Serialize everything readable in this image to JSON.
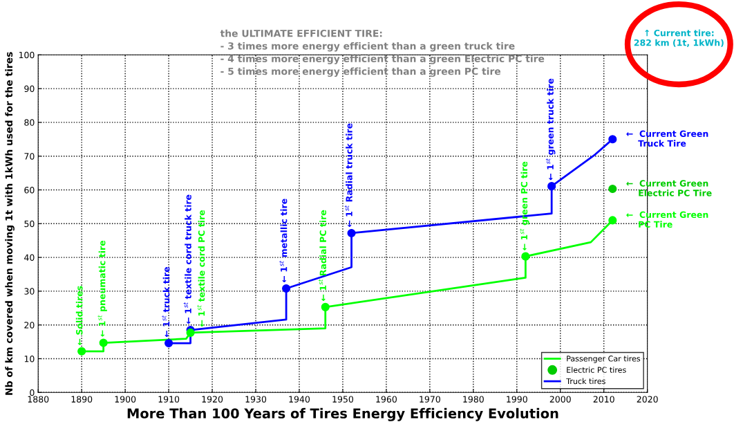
{
  "chart_data": {
    "type": "line",
    "xlabel": "More Than 100 Years of Tires Energy Efficiency Evolution",
    "ylabel": "Nb of km covered when moving 1t with 1kWh used for the tires",
    "xlim": [
      1880,
      2020
    ],
    "xticks": [
      1880,
      1890,
      1900,
      1910,
      1920,
      1930,
      1940,
      1950,
      1960,
      1970,
      1980,
      1990,
      2000,
      2010,
      2020
    ],
    "ylim": [
      0,
      100
    ],
    "yticks": [
      0,
      10,
      20,
      30,
      40,
      50,
      60,
      70,
      80,
      90,
      100
    ],
    "grid": true,
    "legend": "bottom right",
    "series": [
      {
        "name": "Passenger Car tires",
        "color": "#00ff00",
        "x": [
          1890,
          1895,
          1895,
          1914,
          1915,
          1946,
          1946,
          1992,
          1992,
          2007,
          2012
        ],
        "values": [
          12.2,
          12.2,
          14.7,
          15.9,
          17.7,
          19,
          25.3,
          34,
          40.3,
          44.5,
          51
        ]
      },
      {
        "name": "Electric PC tires",
        "type": "scatter",
        "color": "#00cc00",
        "x": [
          2012
        ],
        "values": [
          60.3
        ]
      },
      {
        "name": "Truck tires",
        "color": "#0000ff",
        "x": [
          1910,
          1915,
          1915,
          1937,
          1937,
          1952,
          1952,
          1998,
          1998,
          2008,
          2012
        ],
        "values": [
          14.6,
          14.6,
          18.5,
          21.6,
          30.8,
          37.1,
          47.2,
          53,
          61.1,
          70.5,
          75
        ]
      },
      {
        "type": "scatter",
        "color": "#00ff00",
        "x": [
          1890,
          1895,
          1915,
          1946,
          1992,
          2012
        ],
        "values": [
          12.2,
          14.7,
          17.7,
          25.3,
          40.3,
          51
        ]
      },
      {
        "type": "scatter",
        "color": "#0000ff",
        "x": [
          1910,
          1915,
          1937,
          1952,
          1998,
          2012
        ],
        "values": [
          14.6,
          18.5,
          30.8,
          47.2,
          61.1,
          75
        ]
      }
    ],
    "annotations": [
      "the ULTIMATE EFFICIENT TIRE:\n- 3 times more energy efficient than a green truck tire\n- 4 times more energy efficient than a green Electric PC tire\n- 5 times more energy efficient than a green PC tire",
      "↑ Current tire:\n282 km (1t, 1kWh)",
      {
        "text": "← Solid tires",
        "x": 1890,
        "y": 12.2
      },
      {
        "text": "← 1$^{st}$ pneumatic tire",
        "x": 1895,
        "y": 14.7
      },
      {
        "text": "← 1$^{st}$ truck tire",
        "x": 1910,
        "y": 14.6
      },
      {
        "text": "← 1$^{st}$ textile cord truck tire",
        "x": 1915,
        "y": 18.5
      },
      {
        "text": "← 1$^{st}$ textile cord PC tire",
        "x": 1915,
        "y": 17.7
      },
      {
        "text": "← 1$^{st}$ metallic tire",
        "x": 1937,
        "y": 30.8
      },
      {
        "text": "← 1$^{st}$ Radial PC tire",
        "x": 1946,
        "y": 25.3
      },
      {
        "text": "← 1$^{st}$ Radial truck tire",
        "x": 1952,
        "y": 47.2
      },
      {
        "text": "← 1$^{st}$ green PC tire",
        "x": 1992,
        "y": 40.3
      },
      {
        "text": "← 1$^{st}$ green truck tire",
        "x": 1998,
        "y": 61.1
      },
      {
        "text": "←  Current Green\n    Truck Tire",
        "x": 2012,
        "y": 75
      },
      {
        "text": "←  Current Green\n    Electric PC Tire",
        "x": 2012,
        "y": 60.3
      },
      {
        "text": "←  Current Green\n    PC Tire",
        "x": 2012,
        "y": 51
      }
    ]
  }
}
